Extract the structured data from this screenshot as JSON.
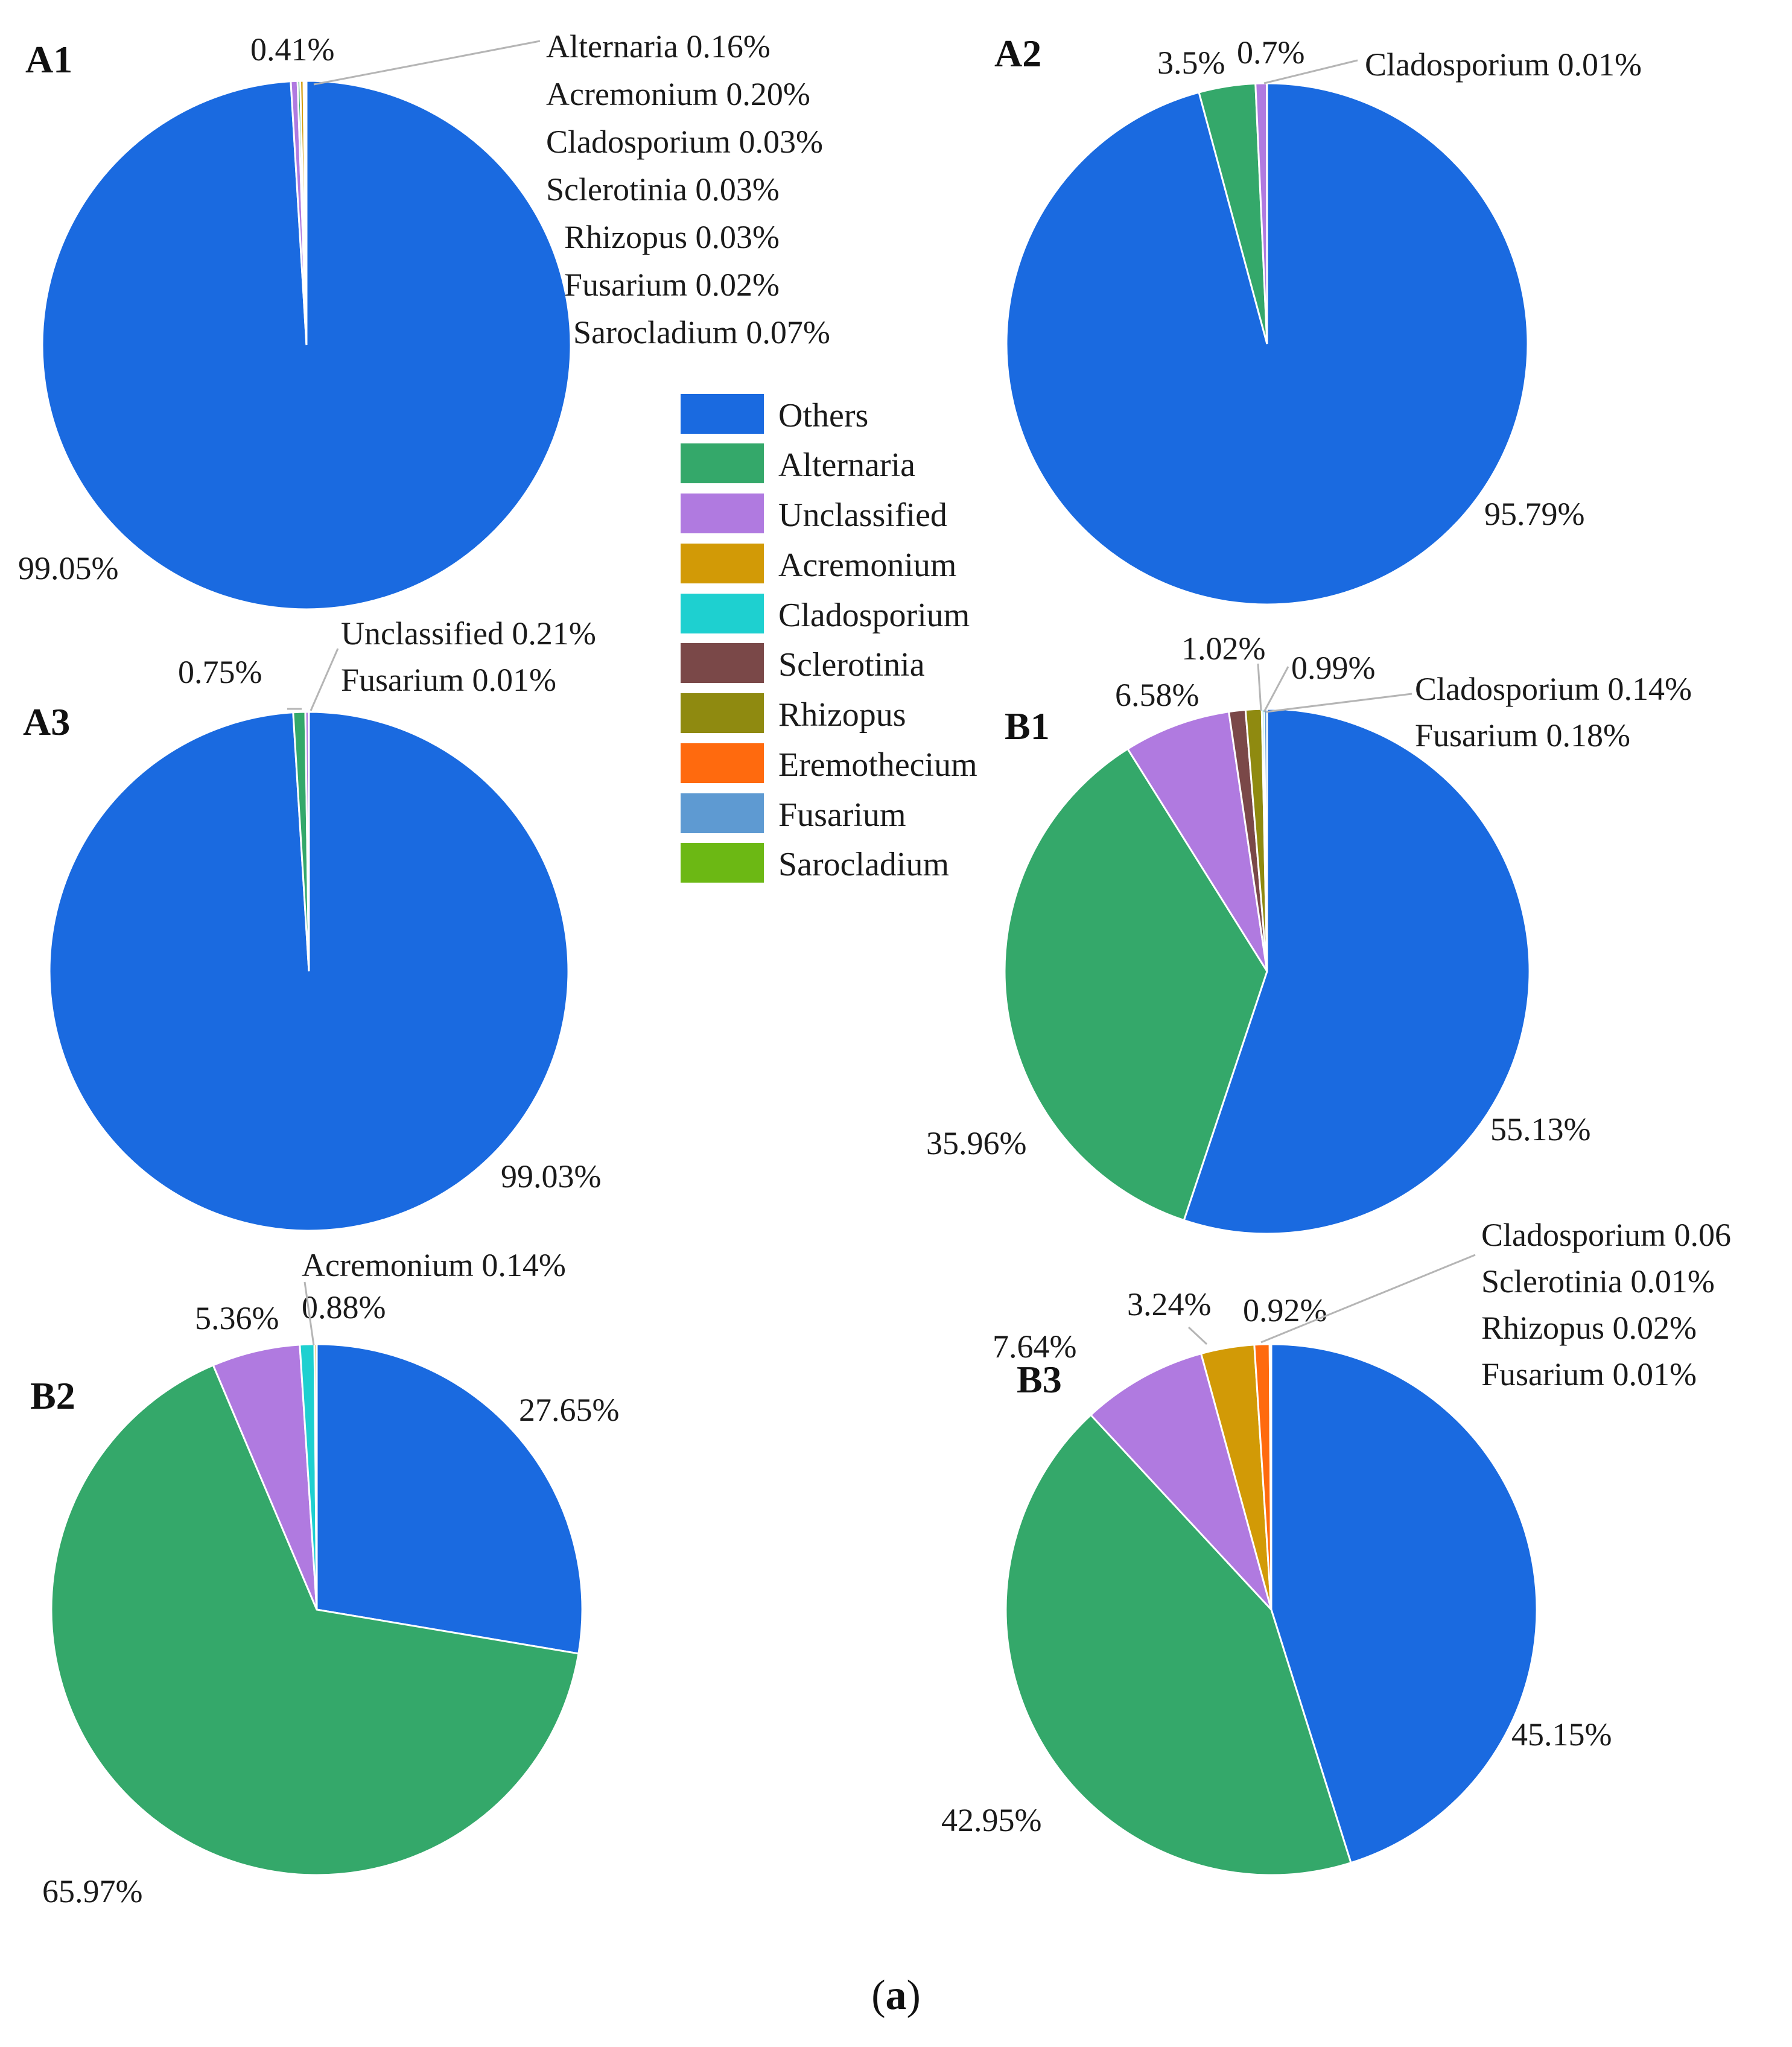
{
  "chart_data": [
    {
      "type": "pie",
      "panel": "A1",
      "slices": [
        {
          "label": "Others",
          "value": 99.05,
          "display": "99.05%"
        },
        {
          "label": "Unclassified",
          "value": 0.41,
          "display": "0.41%"
        },
        {
          "label": "Alternaria",
          "value": 0.16
        },
        {
          "label": "Acremonium",
          "value": 0.2
        },
        {
          "label": "Cladosporium",
          "value": 0.03
        },
        {
          "label": "Sclerotinia",
          "value": 0.03
        },
        {
          "label": "Rhizopus",
          "value": 0.03
        },
        {
          "label": "Fusarium",
          "value": 0.02
        },
        {
          "label": "Sarocladium",
          "value": 0.07
        }
      ],
      "annotations": [
        "Alternaria 0.16%",
        "Acremonium 0.20%",
        "Cladosporium 0.03%",
        "Sclerotinia 0.03%",
        "Rhizopus 0.03%",
        "Fusarium 0.02%",
        "Sarocladium 0.07%"
      ]
    },
    {
      "type": "pie",
      "panel": "A2",
      "slices": [
        {
          "label": "Others",
          "value": 95.79,
          "display": "95.79%"
        },
        {
          "label": "Alternaria",
          "value": 3.5,
          "display": "3.5%"
        },
        {
          "label": "Unclassified",
          "value": 0.7,
          "display": "0.7%"
        },
        {
          "label": "Cladosporium",
          "value": 0.01
        }
      ],
      "annotations": [
        "Cladosporium 0.01%"
      ]
    },
    {
      "type": "pie",
      "panel": "A3",
      "slices": [
        {
          "label": "Others",
          "value": 99.03,
          "display": "99.03%"
        },
        {
          "label": "Alternaria",
          "value": 0.75,
          "display": "0.75%"
        },
        {
          "label": "Unclassified",
          "value": 0.21
        },
        {
          "label": "Fusarium",
          "value": 0.01
        }
      ],
      "annotations": [
        "Unclassified 0.21%",
        "Fusarium 0.01%"
      ]
    },
    {
      "type": "pie",
      "panel": "B1",
      "slices": [
        {
          "label": "Others",
          "value": 55.13,
          "display": "55.13%"
        },
        {
          "label": "Alternaria",
          "value": 35.96,
          "display": "35.96%"
        },
        {
          "label": "Unclassified",
          "value": 6.58,
          "display": "6.58%"
        },
        {
          "label": "Sclerotinia",
          "value": 1.02,
          "display": "1.02%"
        },
        {
          "label": "Rhizopus",
          "value": 0.99,
          "display": "0.99%"
        },
        {
          "label": "Cladosporium",
          "value": 0.14
        },
        {
          "label": "Fusarium",
          "value": 0.18
        }
      ],
      "annotations": [
        "Cladosporium 0.14%",
        "Fusarium 0.18%"
      ]
    },
    {
      "type": "pie",
      "panel": "B2",
      "slices": [
        {
          "label": "Others",
          "value": 27.65,
          "display": "27.65%"
        },
        {
          "label": "Alternaria",
          "value": 65.97,
          "display": "65.97%"
        },
        {
          "label": "Unclassified",
          "value": 5.36,
          "display": "5.36%"
        },
        {
          "label": "Cladosporium",
          "value": 0.88,
          "display": "0.88%"
        },
        {
          "label": "Acremonium",
          "value": 0.14
        }
      ],
      "annotations": [
        "Acremonium 0.14%"
      ]
    },
    {
      "type": "pie",
      "panel": "B3",
      "slices": [
        {
          "label": "Others",
          "value": 45.15,
          "display": "45.15%"
        },
        {
          "label": "Alternaria",
          "value": 42.95,
          "display": "42.95%"
        },
        {
          "label": "Unclassified",
          "value": 7.64,
          "display": "7.64%"
        },
        {
          "label": "Acremonium",
          "value": 3.24,
          "display": "3.24%"
        },
        {
          "label": "Eremothecium",
          "value": 0.92,
          "display": "0.92%"
        },
        {
          "label": "Cladosporium",
          "value": 0.06
        },
        {
          "label": "Sclerotinia",
          "value": 0.01
        },
        {
          "label": "Rhizopus",
          "value": 0.02
        },
        {
          "label": "Fusarium",
          "value": 0.01
        }
      ],
      "annotations": [
        "Cladosporium 0.06",
        "Sclerotinia 0.01%",
        "Rhizopus 0.02%",
        "Fusarium 0.01%"
      ]
    }
  ],
  "legend": [
    {
      "label": "Others",
      "color": "#1a6ae0"
    },
    {
      "label": "Alternaria",
      "color": "#34a86a"
    },
    {
      "label": "Unclassified",
      "color": "#b07ae0"
    },
    {
      "label": "Acremonium",
      "color": "#d29a06"
    },
    {
      "label": "Cladosporium",
      "color": "#1ed0d0"
    },
    {
      "label": "Sclerotinia",
      "color": "#7a4848"
    },
    {
      "label": "Rhizopus",
      "color": "#8f8a10"
    },
    {
      "label": "Eremothecium",
      "color": "#ff6a0e"
    },
    {
      "label": "Fusarium",
      "color": "#5e9ad2"
    },
    {
      "label": "Sarocladium",
      "color": "#6cb814"
    }
  ],
  "caption": {
    "open": "(",
    "letter": "a",
    "close": ")"
  }
}
